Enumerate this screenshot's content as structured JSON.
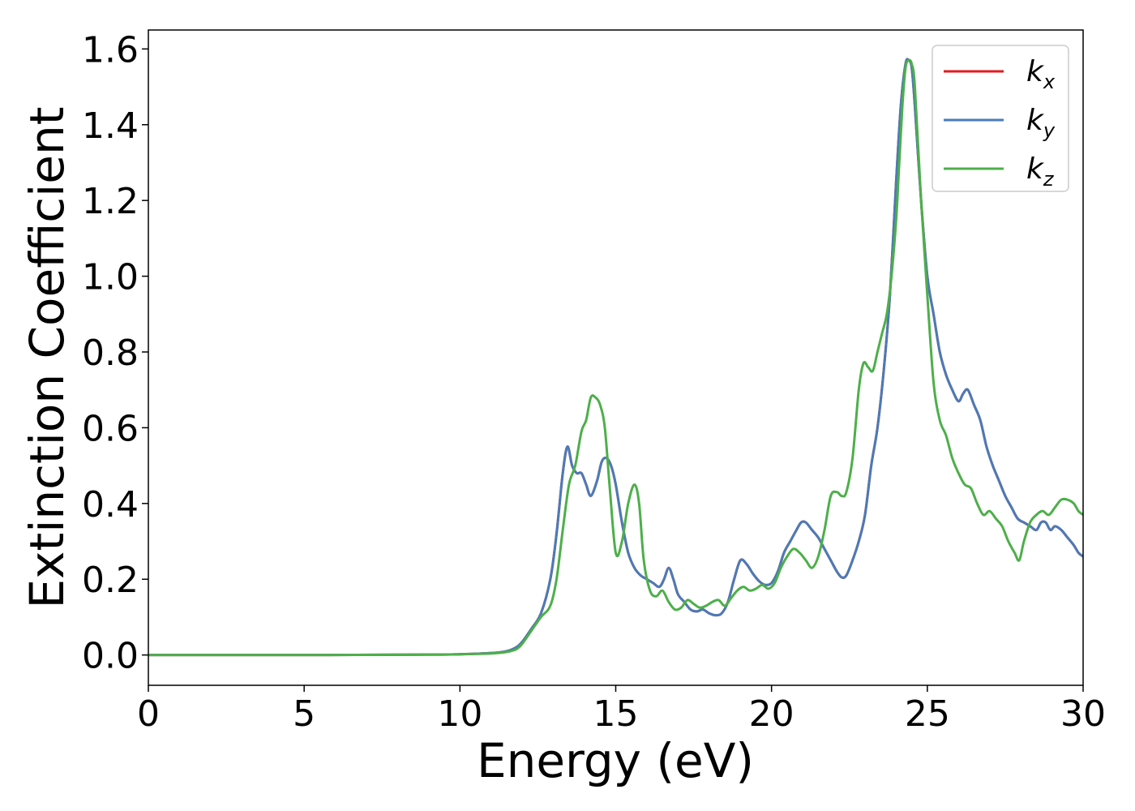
{
  "chart_data": {
    "type": "line",
    "title": "",
    "xlabel": "Energy (eV)",
    "ylabel": "Extinction Coefficient",
    "xlim": [
      0,
      30
    ],
    "ylim": [
      -0.08,
      1.65
    ],
    "xticks": [
      0,
      5,
      10,
      15,
      20,
      25,
      30
    ],
    "xtick_labels": [
      "0",
      "5",
      "10",
      "15",
      "20",
      "25",
      "30"
    ],
    "yticks": [
      0.0,
      0.2,
      0.4,
      0.6,
      0.8,
      1.0,
      1.2,
      1.4,
      1.6
    ],
    "ytick_labels": [
      "0.0",
      "0.2",
      "0.4",
      "0.6",
      "0.8",
      "1.0",
      "1.2",
      "1.4",
      "1.6"
    ],
    "grid": false,
    "legend_position": "top-right",
    "series": [
      {
        "name": "k_x",
        "legend_base": "k",
        "legend_sub": "x",
        "color": "#e41a1c",
        "x": [
          0,
          5,
          9,
          10,
          11,
          11.5,
          11.8,
          12.0,
          12.3,
          12.6,
          12.9,
          13.1,
          13.3,
          13.45,
          13.6,
          13.75,
          13.9,
          14.05,
          14.2,
          14.4,
          14.55,
          14.7,
          14.85,
          15.0,
          15.2,
          15.4,
          15.6,
          15.8,
          16.0,
          16.2,
          16.4,
          16.55,
          16.7,
          16.85,
          17.0,
          17.2,
          17.4,
          17.6,
          17.8,
          18.0,
          18.2,
          18.4,
          18.6,
          18.8,
          19.0,
          19.2,
          19.4,
          19.6,
          19.8,
          20.0,
          20.2,
          20.4,
          20.6,
          20.8,
          20.95,
          21.1,
          21.3,
          21.5,
          21.7,
          21.9,
          22.1,
          22.25,
          22.4,
          22.6,
          22.8,
          23.0,
          23.2,
          23.4,
          23.6,
          23.8,
          24.0,
          24.15,
          24.3,
          24.4,
          24.5,
          24.6,
          24.8,
          25.0,
          25.2,
          25.4,
          25.6,
          25.8,
          26.0,
          26.15,
          26.3,
          26.5,
          26.7,
          26.9,
          27.1,
          27.3,
          27.5,
          27.7,
          27.9,
          28.1,
          28.3,
          28.5,
          28.65,
          28.8,
          28.95,
          29.1,
          29.3,
          29.5,
          29.7,
          29.85,
          30.0
        ],
        "y": [
          0.0,
          0.0,
          0.001,
          0.002,
          0.005,
          0.01,
          0.02,
          0.035,
          0.07,
          0.11,
          0.2,
          0.32,
          0.48,
          0.55,
          0.5,
          0.48,
          0.48,
          0.45,
          0.42,
          0.46,
          0.51,
          0.52,
          0.5,
          0.45,
          0.35,
          0.27,
          0.23,
          0.21,
          0.2,
          0.19,
          0.18,
          0.2,
          0.23,
          0.2,
          0.16,
          0.14,
          0.12,
          0.115,
          0.12,
          0.11,
          0.105,
          0.11,
          0.14,
          0.2,
          0.25,
          0.24,
          0.215,
          0.195,
          0.185,
          0.19,
          0.22,
          0.27,
          0.3,
          0.33,
          0.35,
          0.35,
          0.33,
          0.31,
          0.28,
          0.25,
          0.22,
          0.205,
          0.21,
          0.25,
          0.3,
          0.37,
          0.5,
          0.6,
          0.75,
          0.95,
          1.25,
          1.45,
          1.56,
          1.57,
          1.55,
          1.45,
          1.2,
          1.0,
          0.9,
          0.8,
          0.74,
          0.7,
          0.67,
          0.69,
          0.7,
          0.66,
          0.62,
          0.55,
          0.5,
          0.46,
          0.42,
          0.39,
          0.36,
          0.35,
          0.34,
          0.33,
          0.35,
          0.35,
          0.33,
          0.34,
          0.33,
          0.31,
          0.29,
          0.27,
          0.26
        ]
      },
      {
        "name": "k_y",
        "legend_base": "k",
        "legend_sub": "y",
        "color": "#4a7bb7",
        "x": [
          0,
          5,
          9,
          10,
          11,
          11.5,
          11.8,
          12.0,
          12.3,
          12.6,
          12.9,
          13.1,
          13.3,
          13.45,
          13.6,
          13.75,
          13.9,
          14.05,
          14.2,
          14.4,
          14.55,
          14.7,
          14.85,
          15.0,
          15.2,
          15.4,
          15.6,
          15.8,
          16.0,
          16.2,
          16.4,
          16.55,
          16.7,
          16.85,
          17.0,
          17.2,
          17.4,
          17.6,
          17.8,
          18.0,
          18.2,
          18.4,
          18.6,
          18.8,
          19.0,
          19.2,
          19.4,
          19.6,
          19.8,
          20.0,
          20.2,
          20.4,
          20.6,
          20.8,
          20.95,
          21.1,
          21.3,
          21.5,
          21.7,
          21.9,
          22.1,
          22.25,
          22.4,
          22.6,
          22.8,
          23.0,
          23.2,
          23.4,
          23.6,
          23.8,
          24.0,
          24.15,
          24.3,
          24.4,
          24.5,
          24.6,
          24.8,
          25.0,
          25.2,
          25.4,
          25.6,
          25.8,
          26.0,
          26.15,
          26.3,
          26.5,
          26.7,
          26.9,
          27.1,
          27.3,
          27.5,
          27.7,
          27.9,
          28.1,
          28.3,
          28.5,
          28.65,
          28.8,
          28.95,
          29.1,
          29.3,
          29.5,
          29.7,
          29.85,
          30.0
        ],
        "y": [
          0.0,
          0.0,
          0.001,
          0.002,
          0.005,
          0.01,
          0.02,
          0.035,
          0.07,
          0.11,
          0.2,
          0.32,
          0.48,
          0.55,
          0.5,
          0.48,
          0.48,
          0.45,
          0.42,
          0.46,
          0.51,
          0.52,
          0.5,
          0.45,
          0.35,
          0.27,
          0.23,
          0.21,
          0.2,
          0.19,
          0.18,
          0.2,
          0.23,
          0.2,
          0.16,
          0.14,
          0.12,
          0.115,
          0.12,
          0.11,
          0.105,
          0.11,
          0.14,
          0.2,
          0.25,
          0.24,
          0.215,
          0.195,
          0.185,
          0.19,
          0.22,
          0.27,
          0.3,
          0.33,
          0.35,
          0.35,
          0.33,
          0.31,
          0.28,
          0.25,
          0.22,
          0.205,
          0.21,
          0.25,
          0.3,
          0.37,
          0.5,
          0.6,
          0.75,
          0.95,
          1.25,
          1.45,
          1.56,
          1.57,
          1.55,
          1.45,
          1.2,
          1.0,
          0.9,
          0.8,
          0.74,
          0.7,
          0.67,
          0.69,
          0.7,
          0.66,
          0.62,
          0.55,
          0.5,
          0.46,
          0.42,
          0.39,
          0.36,
          0.35,
          0.34,
          0.33,
          0.35,
          0.35,
          0.33,
          0.34,
          0.33,
          0.31,
          0.29,
          0.27,
          0.26
        ]
      },
      {
        "name": "k_z",
        "legend_base": "k",
        "legend_sub": "z",
        "color": "#4daf4a",
        "x": [
          0,
          5,
          9,
          10,
          11,
          11.5,
          11.8,
          12.0,
          12.3,
          12.6,
          12.9,
          13.1,
          13.3,
          13.5,
          13.7,
          13.9,
          14.05,
          14.2,
          14.35,
          14.5,
          14.65,
          14.8,
          15.0,
          15.2,
          15.4,
          15.6,
          15.75,
          15.9,
          16.1,
          16.3,
          16.5,
          16.7,
          16.9,
          17.1,
          17.3,
          17.5,
          17.7,
          17.9,
          18.1,
          18.3,
          18.5,
          18.7,
          18.9,
          19.1,
          19.3,
          19.5,
          19.7,
          19.9,
          20.1,
          20.3,
          20.5,
          20.7,
          20.9,
          21.1,
          21.3,
          21.5,
          21.7,
          21.9,
          22.1,
          22.25,
          22.4,
          22.6,
          22.8,
          22.95,
          23.1,
          23.25,
          23.4,
          23.55,
          23.7,
          23.85,
          24.0,
          24.1,
          24.2,
          24.3,
          24.4,
          24.5,
          24.6,
          24.8,
          25.0,
          25.2,
          25.4,
          25.6,
          25.8,
          26.0,
          26.2,
          26.4,
          26.6,
          26.8,
          27.0,
          27.2,
          27.4,
          27.6,
          27.8,
          27.95,
          28.1,
          28.3,
          28.5,
          28.7,
          28.9,
          29.1,
          29.3,
          29.5,
          29.7,
          29.85,
          30.0
        ],
        "y": [
          0.0,
          0.0,
          0.001,
          0.002,
          0.004,
          0.008,
          0.015,
          0.03,
          0.065,
          0.1,
          0.13,
          0.2,
          0.33,
          0.45,
          0.5,
          0.59,
          0.62,
          0.68,
          0.68,
          0.66,
          0.6,
          0.45,
          0.27,
          0.3,
          0.4,
          0.45,
          0.4,
          0.25,
          0.17,
          0.155,
          0.17,
          0.14,
          0.12,
          0.125,
          0.145,
          0.135,
          0.125,
          0.13,
          0.14,
          0.145,
          0.13,
          0.15,
          0.17,
          0.18,
          0.17,
          0.175,
          0.185,
          0.175,
          0.19,
          0.23,
          0.26,
          0.28,
          0.27,
          0.25,
          0.23,
          0.26,
          0.33,
          0.42,
          0.43,
          0.42,
          0.43,
          0.52,
          0.7,
          0.77,
          0.76,
          0.75,
          0.8,
          0.85,
          0.9,
          1.0,
          1.15,
          1.3,
          1.45,
          1.55,
          1.57,
          1.56,
          1.5,
          1.2,
          0.95,
          0.72,
          0.62,
          0.58,
          0.52,
          0.48,
          0.45,
          0.44,
          0.4,
          0.37,
          0.38,
          0.36,
          0.34,
          0.3,
          0.27,
          0.25,
          0.3,
          0.35,
          0.37,
          0.38,
          0.37,
          0.39,
          0.41,
          0.41,
          0.4,
          0.38,
          0.37
        ]
      }
    ]
  }
}
